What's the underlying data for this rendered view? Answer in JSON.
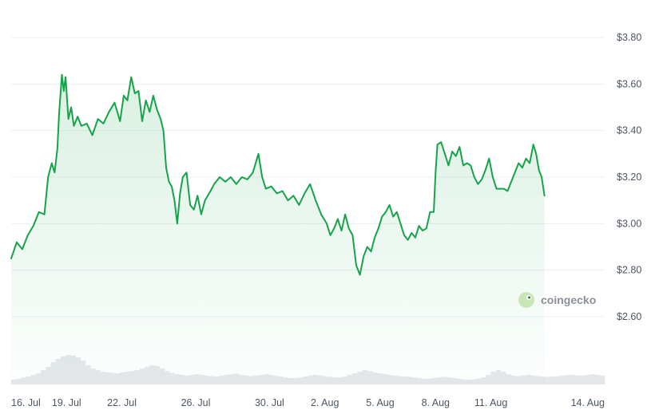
{
  "chart_data": {
    "type": "area",
    "y_tick_labels": [
      "$3.80",
      "$3.60",
      "$3.40",
      "$3.20",
      "$3.00",
      "$2.80",
      "$2.60"
    ],
    "y_ticks": [
      3.8,
      3.6,
      3.4,
      3.2,
      3.0,
      2.8,
      2.6
    ],
    "ylim": [
      2.6,
      3.8
    ],
    "x_tick_labels": [
      "16. Jul",
      "19. Jul",
      "22. Jul",
      "26. Jul",
      "30. Jul",
      "2. Aug",
      "5. Aug",
      "8. Aug",
      "11. Aug",
      "14. Aug"
    ],
    "x_tick_days": [
      0,
      3,
      6,
      10,
      14,
      17,
      20,
      23,
      26,
      29
    ],
    "x_start_label": "16. Jul",
    "grid": true,
    "colors": {
      "line": "#16a34a",
      "fill": "#16a34a",
      "volume": "#e5e7eb"
    },
    "series": [
      {
        "points": [
          [
            0.0,
            2.85
          ],
          [
            0.3,
            2.92
          ],
          [
            0.6,
            2.89
          ],
          [
            0.9,
            2.95
          ],
          [
            1.2,
            2.99
          ],
          [
            1.5,
            3.05
          ],
          [
            1.8,
            3.04
          ],
          [
            2.0,
            3.2
          ],
          [
            2.2,
            3.26
          ],
          [
            2.35,
            3.22
          ],
          [
            2.5,
            3.32
          ],
          [
            2.6,
            3.48
          ],
          [
            2.75,
            3.64
          ],
          [
            2.85,
            3.57
          ],
          [
            2.95,
            3.63
          ],
          [
            3.1,
            3.45
          ],
          [
            3.25,
            3.5
          ],
          [
            3.4,
            3.42
          ],
          [
            3.6,
            3.46
          ],
          [
            3.8,
            3.42
          ],
          [
            4.1,
            3.43
          ],
          [
            4.4,
            3.38
          ],
          [
            4.7,
            3.45
          ],
          [
            5.0,
            3.43
          ],
          [
            5.3,
            3.48
          ],
          [
            5.6,
            3.52
          ],
          [
            5.9,
            3.44
          ],
          [
            6.1,
            3.55
          ],
          [
            6.3,
            3.53
          ],
          [
            6.5,
            3.63
          ],
          [
            6.7,
            3.56
          ],
          [
            6.9,
            3.57
          ],
          [
            7.1,
            3.44
          ],
          [
            7.3,
            3.53
          ],
          [
            7.5,
            3.48
          ],
          [
            7.7,
            3.55
          ],
          [
            7.9,
            3.49
          ],
          [
            8.1,
            3.45
          ],
          [
            8.25,
            3.4
          ],
          [
            8.4,
            3.24
          ],
          [
            8.55,
            3.18
          ],
          [
            8.7,
            3.16
          ],
          [
            8.85,
            3.1
          ],
          [
            9.0,
            3.0
          ],
          [
            9.15,
            3.13
          ],
          [
            9.3,
            3.2
          ],
          [
            9.5,
            3.22
          ],
          [
            9.7,
            3.08
          ],
          [
            9.9,
            3.06
          ],
          [
            10.1,
            3.12
          ],
          [
            10.3,
            3.04
          ],
          [
            10.5,
            3.1
          ],
          [
            10.8,
            3.14
          ],
          [
            11.0,
            3.17
          ],
          [
            11.3,
            3.2
          ],
          [
            11.6,
            3.18
          ],
          [
            11.9,
            3.2
          ],
          [
            12.2,
            3.17
          ],
          [
            12.5,
            3.2
          ],
          [
            12.8,
            3.19
          ],
          [
            13.1,
            3.22
          ],
          [
            13.4,
            3.3
          ],
          [
            13.6,
            3.2
          ],
          [
            13.8,
            3.15
          ],
          [
            14.1,
            3.16
          ],
          [
            14.4,
            3.13
          ],
          [
            14.7,
            3.14
          ],
          [
            15.0,
            3.1
          ],
          [
            15.3,
            3.12
          ],
          [
            15.6,
            3.08
          ],
          [
            15.9,
            3.13
          ],
          [
            16.2,
            3.17
          ],
          [
            16.5,
            3.1
          ],
          [
            16.8,
            3.04
          ],
          [
            17.1,
            3.0
          ],
          [
            17.3,
            2.95
          ],
          [
            17.5,
            2.98
          ],
          [
            17.7,
            3.02
          ],
          [
            17.9,
            2.97
          ],
          [
            18.1,
            3.04
          ],
          [
            18.3,
            2.98
          ],
          [
            18.5,
            2.95
          ],
          [
            18.7,
            2.82
          ],
          [
            18.9,
            2.78
          ],
          [
            19.1,
            2.86
          ],
          [
            19.3,
            2.9
          ],
          [
            19.5,
            2.88
          ],
          [
            19.7,
            2.94
          ],
          [
            19.9,
            2.98
          ],
          [
            20.1,
            3.03
          ],
          [
            20.3,
            3.05
          ],
          [
            20.5,
            3.08
          ],
          [
            20.7,
            3.03
          ],
          [
            20.9,
            3.05
          ],
          [
            21.1,
            3.0
          ],
          [
            21.3,
            2.95
          ],
          [
            21.5,
            2.93
          ],
          [
            21.7,
            2.96
          ],
          [
            21.9,
            2.94
          ],
          [
            22.1,
            2.99
          ],
          [
            22.3,
            2.97
          ],
          [
            22.5,
            2.98
          ],
          [
            22.7,
            3.05
          ],
          [
            22.9,
            3.05
          ],
          [
            23.0,
            3.22
          ],
          [
            23.1,
            3.34
          ],
          [
            23.3,
            3.35
          ],
          [
            23.5,
            3.3
          ],
          [
            23.7,
            3.25
          ],
          [
            23.9,
            3.31
          ],
          [
            24.1,
            3.29
          ],
          [
            24.3,
            3.33
          ],
          [
            24.5,
            3.25
          ],
          [
            24.7,
            3.26
          ],
          [
            24.9,
            3.25
          ],
          [
            25.1,
            3.2
          ],
          [
            25.3,
            3.17
          ],
          [
            25.5,
            3.19
          ],
          [
            25.7,
            3.23
          ],
          [
            25.9,
            3.28
          ],
          [
            26.1,
            3.2
          ],
          [
            26.3,
            3.15
          ],
          [
            26.5,
            3.15
          ],
          [
            26.7,
            3.15
          ],
          [
            26.9,
            3.14
          ],
          [
            27.1,
            3.18
          ],
          [
            27.3,
            3.22
          ],
          [
            27.5,
            3.26
          ],
          [
            27.7,
            3.24
          ],
          [
            27.9,
            3.28
          ],
          [
            28.1,
            3.26
          ],
          [
            28.3,
            3.34
          ],
          [
            28.45,
            3.3
          ],
          [
            28.6,
            3.23
          ],
          [
            28.75,
            3.2
          ],
          [
            28.9,
            3.12
          ]
        ]
      }
    ],
    "volume": [
      0.15,
      0.18,
      0.22,
      0.25,
      0.3,
      0.35,
      0.45,
      0.55,
      0.7,
      0.8,
      0.88,
      0.92,
      0.9,
      0.85,
      0.75,
      0.6,
      0.5,
      0.45,
      0.4,
      0.38,
      0.36,
      0.35,
      0.38,
      0.4,
      0.42,
      0.45,
      0.5,
      0.55,
      0.6,
      0.58,
      0.5,
      0.42,
      0.36,
      0.32,
      0.3,
      0.28,
      0.3,
      0.32,
      0.3,
      0.28,
      0.26,
      0.25,
      0.27,
      0.3,
      0.32,
      0.34,
      0.3,
      0.28,
      0.26,
      0.28,
      0.3,
      0.32,
      0.3,
      0.27,
      0.25,
      0.22,
      0.2,
      0.2,
      0.22,
      0.25,
      0.28,
      0.3,
      0.28,
      0.26,
      0.24,
      0.22,
      0.22,
      0.25,
      0.3,
      0.35,
      0.4,
      0.45,
      0.42,
      0.38,
      0.35,
      0.33,
      0.3,
      0.28,
      0.26,
      0.25,
      0.24,
      0.22,
      0.2,
      0.18,
      0.18,
      0.2,
      0.22,
      0.24,
      0.22,
      0.2,
      0.18,
      0.16,
      0.15,
      0.16,
      0.18,
      0.22,
      0.3,
      0.4,
      0.45,
      0.4,
      0.32,
      0.28,
      0.26,
      0.28,
      0.3,
      0.28,
      0.26,
      0.25,
      0.24,
      0.25,
      0.26,
      0.28,
      0.3,
      0.3,
      0.29,
      0.28,
      0.3,
      0.32,
      0.3,
      0.28
    ]
  },
  "watermark": {
    "text": "coingecko",
    "icon": "gecko-logo-icon"
  }
}
